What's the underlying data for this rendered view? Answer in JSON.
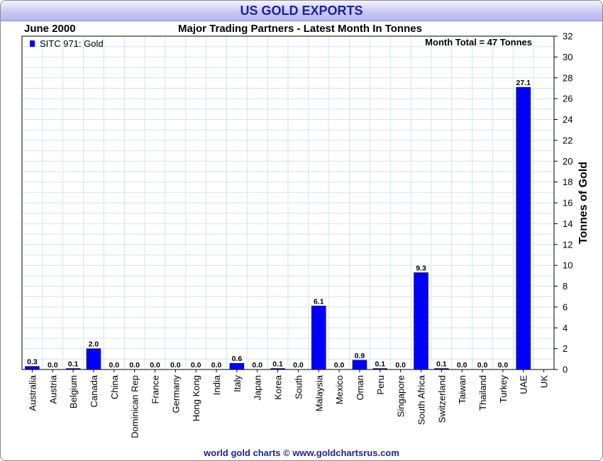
{
  "title": "US GOLD EXPORTS",
  "date_label": "June 2000",
  "subtitle": "Major Trading Partners - Latest Month In Tonnes",
  "footer": "world gold charts © www.goldchartsrus.com",
  "colors": {
    "bar": "#0000ff",
    "title": "#1f1fa0",
    "grid": "#d4e4ee"
  },
  "chart_data": {
    "type": "bar",
    "categories": [
      "Australia",
      "Austria",
      "Belgium",
      "Canada",
      "China",
      "Dominican Rep",
      "France",
      "Germany",
      "Hong Kong",
      "India",
      "Italy",
      "Japan",
      "Korea",
      "South",
      "Malaysia",
      "Mexico",
      "Oman",
      "Peru",
      "Singapore",
      "South Africa",
      "Switzerland",
      "Taiwan",
      "Thailand",
      "Turkey",
      "UAE",
      "UK"
    ],
    "series": [
      {
        "name": "SITC 971: Gold",
        "values": [
          0.3,
          0.0,
          0.1,
          2.0,
          0.0,
          0.0,
          0.0,
          0.0,
          0.0,
          0.0,
          0.6,
          0.0,
          0.1,
          0.0,
          6.1,
          0.0,
          0.9,
          0.1,
          0.0,
          9.3,
          0.1,
          0.0,
          0.0,
          0.0,
          27.1,
          null
        ],
        "data_labels": [
          "0.3",
          "0.0",
          "0.1",
          "2.0",
          "0.0",
          "0.0",
          "0.0",
          "0.0",
          "0.0",
          "0.0",
          "0.6",
          "0.0",
          "0.1",
          "0.0",
          "6.1",
          "0.0",
          "0.9",
          "0.1",
          "0.0",
          "9.3",
          "0.1",
          "0.0",
          "0.0",
          "0.0",
          "27.1",
          ""
        ]
      }
    ],
    "title": "Major Trading Partners - Latest Month In Tonnes",
    "ylabel": "Tonnes of Gold",
    "xlabel": "",
    "ylim": [
      0,
      32
    ],
    "yticks": [
      0,
      2,
      4,
      6,
      8,
      10,
      12,
      14,
      16,
      18,
      20,
      22,
      24,
      26,
      28,
      30,
      32
    ],
    "y_axis_side": "right",
    "grid": true,
    "legend": "top-left",
    "annotation": "Month Total = 47 Tonnes"
  }
}
